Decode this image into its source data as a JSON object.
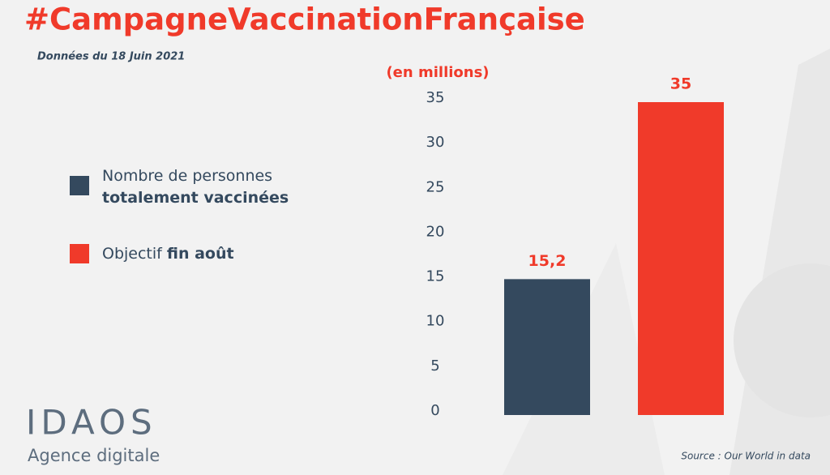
{
  "chart_data": {
    "type": "bar",
    "title": "#CampagneVaccinationFrançaise",
    "subtitle": "Données du 18 Juin 2021",
    "y_label": "(en millions)",
    "categories": [
      null,
      null
    ],
    "series": [
      {
        "name": [
          "Nombre de personnes",
          "totalement vaccinées"
        ],
        "color": "#34495e",
        "values": [
          15.2,
          null
        ],
        "value_labels": [
          "15,2",
          null
        ]
      },
      {
        "name": [
          "Objectif",
          "fin août"
        ],
        "color": "#f03a2a",
        "values": [
          null,
          35
        ],
        "value_labels": [
          null,
          "35"
        ]
      }
    ],
    "value_label_color": "#f03a2a",
    "ylim": [
      0,
      35
    ],
    "yticks": [
      0,
      5,
      10,
      15,
      20,
      25,
      30,
      35
    ],
    "grid": false,
    "source": "Source : Our World in data"
  },
  "branding": {
    "logo": "IDAOS",
    "tagline": "Agence digitale"
  }
}
